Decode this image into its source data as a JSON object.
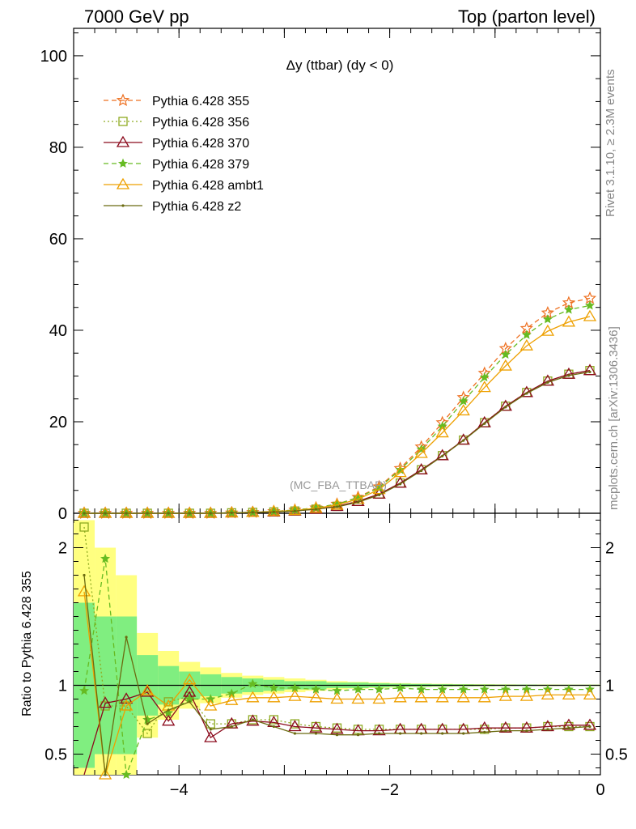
{
  "header": {
    "left": "7000 GeV pp",
    "right": "Top (parton level)"
  },
  "side_labels": {
    "rivet": "Rivet 3.1.10, ≥ 2.3M events",
    "mcplots": "mcplots.cern.ch [arXiv:1306.3436]"
  },
  "colors": {
    "band_inner": "#80ee80",
    "band_outer": "#ffff80",
    "p355": "#ee7020",
    "p356": "#8eaa20",
    "p370": "#8b0a1c",
    "p379": "#66bb22",
    "ambt1": "#eea000",
    "z2": "#6b6b10"
  },
  "chart_data": [
    {
      "type": "line",
      "panel": "main",
      "title": "Δy (ttbar) (dy < 0)",
      "watermark": "(MC_FBA_TTBAR)",
      "ylim": [
        0,
        106
      ],
      "xlim": [
        -5,
        0
      ],
      "ytick_labels": [
        "0",
        "20",
        "40",
        "60",
        "80",
        "100"
      ],
      "legend_position": "top-left",
      "x": [
        -4.9,
        -4.7,
        -4.5,
        -4.3,
        -4.1,
        -3.9,
        -3.7,
        -3.5,
        -3.3,
        -3.1,
        -2.9,
        -2.7,
        -2.5,
        -2.3,
        -2.1,
        -1.9,
        -1.7,
        -1.5,
        -1.3,
        -1.1,
        -0.9,
        -0.7,
        -0.5,
        -0.3,
        -0.1
      ],
      "series": [
        {
          "name": "Pythia 6.428 355",
          "style": "dashed",
          "marker": "star-open",
          "color_key": "p355",
          "values": [
            0.0,
            0.0,
            0.0,
            0.0,
            0.0,
            0.0,
            0.0,
            0.1,
            0.2,
            0.4,
            0.7,
            1.2,
            2.0,
            3.5,
            5.8,
            9.8,
            14.5,
            19.8,
            25.3,
            30.6,
            36.0,
            40.4,
            43.8,
            46.0,
            47.0
          ]
        },
        {
          "name": "Pythia 6.428 356",
          "style": "dotted",
          "marker": "square-open",
          "color_key": "p356",
          "values": [
            0.0,
            0.0,
            0.0,
            0.0,
            0.0,
            0.0,
            0.0,
            0.1,
            0.2,
            0.3,
            0.5,
            0.9,
            1.5,
            2.6,
            4.2,
            6.6,
            9.5,
            12.6,
            16.0,
            19.8,
            23.4,
            26.4,
            28.9,
            30.4,
            31.2
          ]
        },
        {
          "name": "Pythia 6.428 370",
          "style": "solid",
          "marker": "triangle-open",
          "color_key": "p370",
          "values": [
            0.0,
            0.0,
            0.0,
            0.0,
            0.0,
            0.0,
            0.0,
            0.1,
            0.2,
            0.3,
            0.5,
            0.9,
            1.5,
            2.6,
            4.2,
            6.6,
            9.5,
            12.6,
            16.0,
            19.8,
            23.4,
            26.4,
            28.9,
            30.4,
            31.2
          ]
        },
        {
          "name": "Pythia 6.428 379",
          "style": "dashed",
          "marker": "star-filled",
          "color_key": "p379",
          "values": [
            0.0,
            0.0,
            0.0,
            0.0,
            0.0,
            0.0,
            0.0,
            0.1,
            0.2,
            0.4,
            0.7,
            1.2,
            2.0,
            3.4,
            5.6,
            9.5,
            14.0,
            19.0,
            24.5,
            29.7,
            34.7,
            39.0,
            42.4,
            44.5,
            45.4
          ]
        },
        {
          "name": "Pythia 6.428 ambt1",
          "style": "solid",
          "marker": "triangle-open",
          "color_key": "ambt1",
          "values": [
            0.0,
            0.0,
            0.0,
            0.0,
            0.0,
            0.0,
            0.0,
            0.1,
            0.2,
            0.4,
            0.6,
            1.1,
            1.8,
            3.1,
            5.2,
            8.9,
            13.1,
            17.6,
            22.4,
            27.5,
            32.2,
            36.6,
            39.8,
            41.8,
            43.0
          ]
        },
        {
          "name": "Pythia 6.428 z2",
          "style": "solid",
          "marker": "dot",
          "color_key": "z2",
          "values": [
            0.0,
            0.0,
            0.0,
            0.0,
            0.0,
            0.0,
            0.0,
            0.1,
            0.2,
            0.3,
            0.5,
            0.9,
            1.4,
            2.4,
            4.0,
            6.4,
            9.3,
            12.5,
            15.9,
            19.6,
            23.2,
            26.2,
            28.6,
            30.1,
            30.9
          ]
        }
      ]
    },
    {
      "type": "line",
      "panel": "ratio",
      "ylabel": "Ratio to Pythia 6.428 355",
      "ylim": [
        0.35,
        2.25
      ],
      "xlim": [
        -5,
        0
      ],
      "xtick_labels": [
        "−4",
        "−2",
        "0"
      ],
      "ytick_labels": [
        "0.5",
        "1",
        "2"
      ],
      "x": [
        -4.9,
        -4.7,
        -4.5,
        -4.3,
        -4.1,
        -3.9,
        -3.7,
        -3.5,
        -3.3,
        -3.1,
        -2.9,
        -2.7,
        -2.5,
        -2.3,
        -2.1,
        -1.9,
        -1.7,
        -1.5,
        -1.3,
        -1.1,
        -0.9,
        -0.7,
        -0.5,
        -0.3,
        -0.1
      ],
      "band_edges": [
        -5.0,
        -4.8,
        -4.6,
        -4.4,
        -4.2,
        -4.0,
        -3.8,
        -3.6,
        -3.4,
        -3.2,
        -3.0,
        -2.8,
        -2.6,
        -2.4,
        -2.2,
        -2.0,
        -1.8,
        -1.6,
        -1.4,
        -1.2,
        -1.0,
        -0.8,
        -0.6,
        -0.4,
        -0.2,
        0.0
      ],
      "band_inner": [
        0.6,
        0.5,
        0.5,
        0.22,
        0.14,
        0.1,
        0.08,
        0.06,
        0.05,
        0.04,
        0.03,
        0.03,
        0.02,
        0.02,
        0.015,
        0.012,
        0.01,
        0.008,
        0.007,
        0.006,
        0.005,
        0.005,
        0.004,
        0.004,
        0.004
      ],
      "band_outer": [
        1.2,
        1.0,
        0.8,
        0.38,
        0.25,
        0.17,
        0.13,
        0.09,
        0.07,
        0.06,
        0.05,
        0.04,
        0.03,
        0.025,
        0.02,
        0.016,
        0.013,
        0.011,
        0.009,
        0.008,
        0.007,
        0.006,
        0.006,
        0.005,
        0.005
      ],
      "series": [
        {
          "name": "Pythia 6.428 356",
          "color_key": "p356",
          "style": "dotted",
          "values": [
            2.15,
            0.85,
            0.85,
            0.65,
            0.88,
            0.92,
            0.72,
            0.72,
            0.75,
            0.75,
            0.72,
            0.7,
            0.69,
            0.68,
            0.68,
            0.68,
            0.68,
            0.68,
            0.68,
            0.68,
            0.69,
            0.69,
            0.7,
            0.7,
            0.7
          ]
        },
        {
          "name": "Pythia 6.428 370",
          "color_key": "p370",
          "style": "solid",
          "values": [
            0.0,
            0.87,
            0.9,
            0.95,
            0.74,
            0.95,
            0.62,
            0.72,
            0.74,
            0.73,
            0.7,
            0.69,
            0.68,
            0.67,
            0.67,
            0.68,
            0.68,
            0.68,
            0.68,
            0.69,
            0.69,
            0.69,
            0.7,
            0.71,
            0.71
          ]
        },
        {
          "name": "Pythia 6.428 379",
          "color_key": "p379",
          "style": "dashed",
          "values": [
            0.96,
            1.92,
            0.35,
            0.75,
            0.8,
            0.9,
            0.9,
            0.94,
            1.01,
            0.98,
            0.98,
            0.97,
            0.96,
            0.97,
            0.97,
            0.98,
            0.97,
            0.97,
            0.97,
            0.97,
            0.97,
            0.97,
            0.97,
            0.97,
            0.97
          ]
        },
        {
          "name": "Pythia 6.428 ambt1",
          "color_key": "ambt1",
          "style": "solid",
          "values": [
            1.68,
            0.35,
            0.85,
            0.96,
            0.85,
            1.04,
            0.85,
            0.89,
            0.91,
            0.91,
            0.92,
            0.91,
            0.9,
            0.9,
            0.9,
            0.91,
            0.91,
            0.91,
            0.91,
            0.91,
            0.92,
            0.92,
            0.93,
            0.93,
            0.93
          ]
        },
        {
          "name": "Pythia 6.428 z2",
          "color_key": "z2",
          "style": "solid",
          "values": [
            1.8,
            0.35,
            1.35,
            0.72,
            0.82,
            0.88,
            0.68,
            0.7,
            0.75,
            0.7,
            0.65,
            0.65,
            0.64,
            0.64,
            0.65,
            0.65,
            0.65,
            0.65,
            0.65,
            0.66,
            0.67,
            0.67,
            0.68,
            0.69,
            0.7
          ]
        }
      ]
    }
  ]
}
